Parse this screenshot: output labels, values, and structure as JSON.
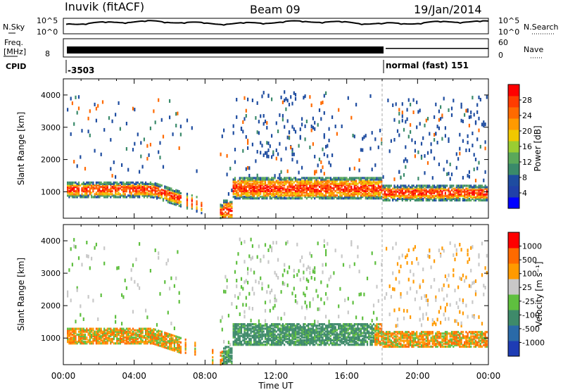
{
  "header": {
    "station": "Inuvik (fitACF)",
    "beam": "Beam 09",
    "date": "19/Jan/2014"
  },
  "top_panels": {
    "nsky_label": "N.Sky",
    "nsearch_label": "N.Search",
    "nsky_ticks": [
      "10^5",
      "10^0"
    ],
    "nsearch_ticks": [
      "10^5",
      "10^0"
    ],
    "freq_label_1": "Freq.",
    "freq_label_2": "[MHz]",
    "freq_tick": "8",
    "nave_label": "Nave",
    "nave_ticks": [
      "60",
      "0"
    ],
    "cpid_label": "CPID",
    "cpid_left": "-3503",
    "cpid_right": "normal (fast) 151"
  },
  "chart_data": [
    {
      "type": "heatmap",
      "name_panel": "power",
      "ylabel": "Slant Range [km]",
      "ylim": [
        180,
        4500
      ],
      "yticks": [
        "4000",
        "3000",
        "2000",
        "1000"
      ],
      "x_ticks": [
        "00:00",
        "04:00",
        "08:00",
        "12:00",
        "16:00",
        "20:00",
        "00:00"
      ],
      "colorbar_label": "Power [dB]",
      "colorbar_ticks": [
        "28",
        "24",
        "20",
        "16",
        "12",
        "8",
        "4"
      ],
      "colorbar_colors": [
        "#0000ff",
        "#2040a8",
        "#1e4ca0",
        "#3a8a6a",
        "#5aa85a",
        "#9acd32",
        "#f0c800",
        "#ff9a00",
        "#ff6a00",
        "#ff3c00",
        "#ff0000"
      ]
    },
    {
      "type": "heatmap",
      "name_panel": "velocity",
      "ylabel": "Slant Range [km]",
      "ylim": [
        180,
        4500
      ],
      "yticks": [
        "4000",
        "3000",
        "2000",
        "1000"
      ],
      "x_ticks": [
        "00:00",
        "04:00",
        "08:00",
        "12:00",
        "16:00",
        "20:00",
        "00:00"
      ],
      "xlabel": "Time UT",
      "colorbar_label": "Velocity [m s⁻¹]",
      "colorbar_ticks": [
        "1000",
        "500",
        "100",
        "25",
        "-25",
        "-100",
        "-500",
        "-1000"
      ],
      "colorbar_colors": [
        "#1e3cb4",
        "#2a6aa8",
        "#3e8a6a",
        "#5fbf3f",
        "#c8c8c8",
        "#ff9a00",
        "#ff6a00",
        "#ff0000"
      ]
    }
  ]
}
